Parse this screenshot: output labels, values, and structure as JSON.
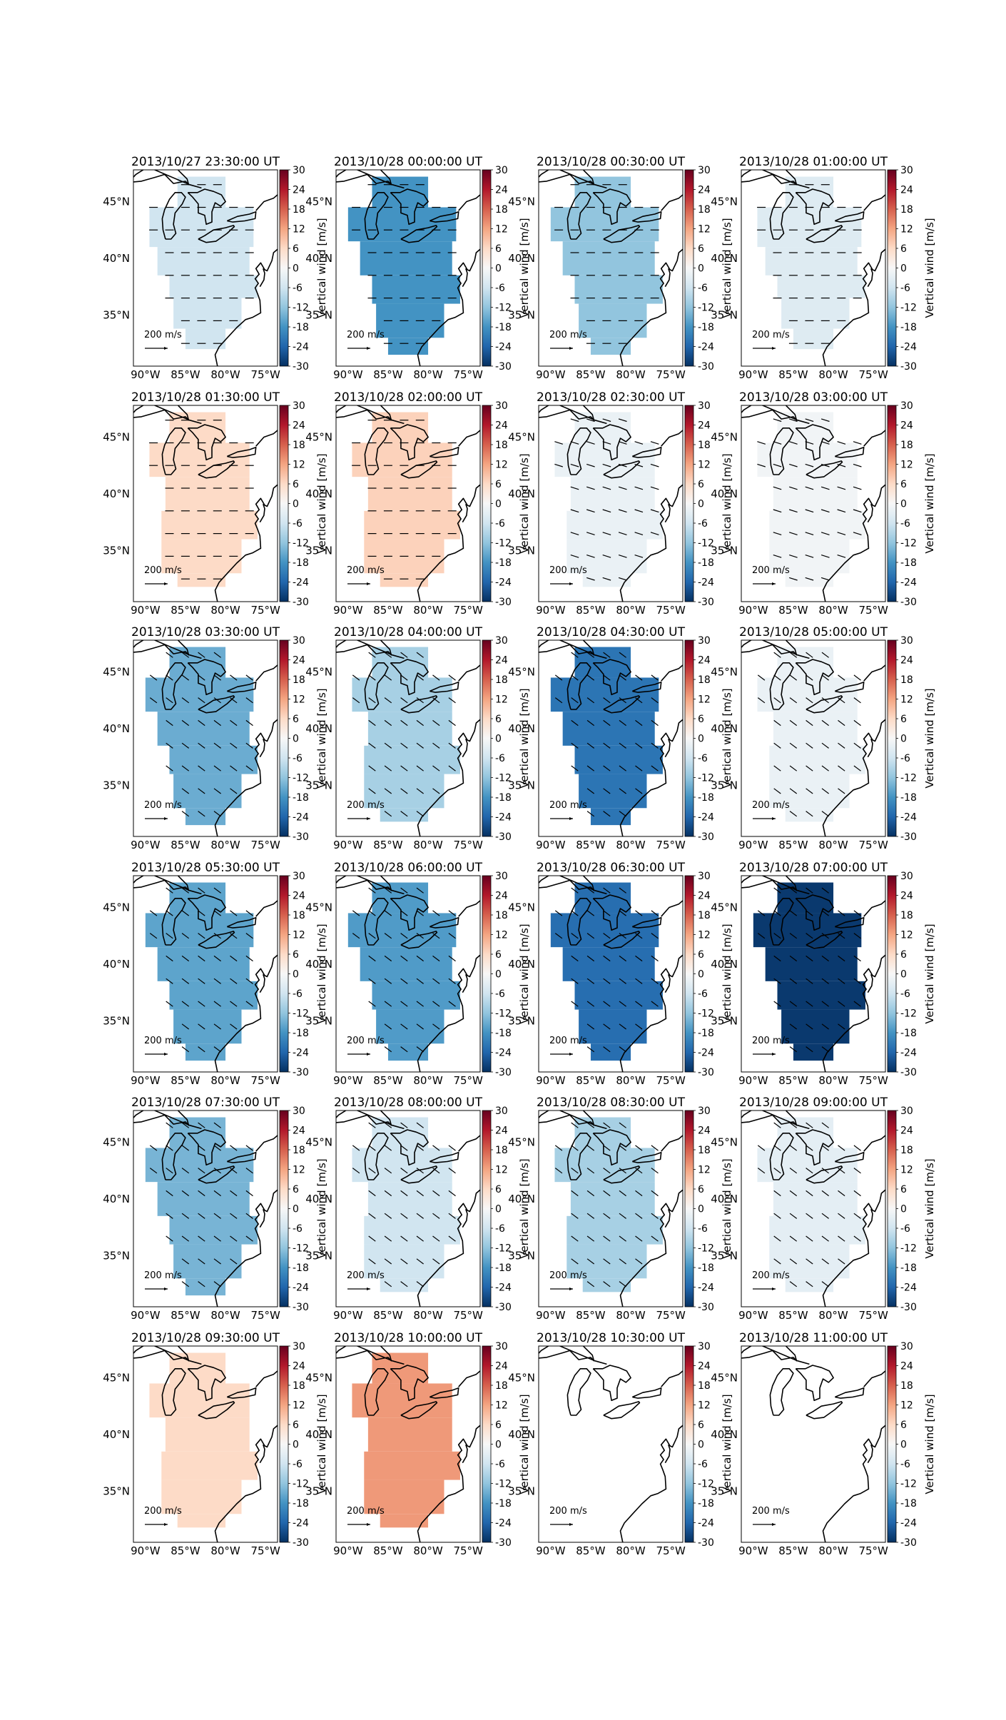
{
  "figure": {
    "longitude_ticks": [
      "90°W",
      "85°W",
      "80°W",
      "75°W"
    ],
    "latitude_ticks": [
      "45°N",
      "40°N",
      "35°N"
    ],
    "colorbar_ticks": [
      30,
      24,
      18,
      12,
      6,
      0,
      -6,
      -12,
      -18,
      -24,
      -30
    ],
    "colorbar_label": "Vertical wind [m/s]",
    "colorbar_range": [
      -30,
      30
    ],
    "colormap": "RdBu_r",
    "colormap_stops": [
      "#053061",
      "#2166ac",
      "#4393c3",
      "#92c5de",
      "#d1e5f0",
      "#f7f7f7",
      "#fddbc7",
      "#f4a582",
      "#d6604d",
      "#b2182b",
      "#67001f"
    ],
    "quiver_key_value": "200",
    "quiver_key_units": "m/s"
  },
  "chart_data": [
    {
      "type": "heatmap",
      "title": "2013/10/27 23:30:00 UT",
      "region": "great-lakes-small",
      "vertical_wind": -6,
      "arrow_direction": "east"
    },
    {
      "type": "heatmap",
      "title": "2013/10/28 00:00:00 UT",
      "region": "large",
      "vertical_wind": -18,
      "arrow_direction": "east"
    },
    {
      "type": "heatmap",
      "title": "2013/10/28 00:30:00 UT",
      "region": "large",
      "vertical_wind": -12,
      "arrow_direction": "east"
    },
    {
      "type": "heatmap",
      "title": "2013/10/28 01:00:00 UT",
      "region": "great-lakes-small",
      "vertical_wind": -4,
      "arrow_direction": "east"
    },
    {
      "type": "heatmap",
      "title": "2013/10/28 01:30:00 UT",
      "region": "medium",
      "vertical_wind": 6,
      "arrow_direction": "east"
    },
    {
      "type": "heatmap",
      "title": "2013/10/28 02:00:00 UT",
      "region": "medium",
      "vertical_wind": 7,
      "arrow_direction": "east"
    },
    {
      "type": "heatmap",
      "title": "2013/10/28 02:30:00 UT",
      "region": "medium",
      "vertical_wind": -2,
      "arrow_direction": "east-southeast"
    },
    {
      "type": "heatmap",
      "title": "2013/10/28 03:00:00 UT",
      "region": "medium",
      "vertical_wind": -1,
      "arrow_direction": "east-southeast"
    },
    {
      "type": "heatmap",
      "title": "2013/10/28 03:30:00 UT",
      "region": "large",
      "vertical_wind": -15,
      "arrow_direction": "southeast"
    },
    {
      "type": "heatmap",
      "title": "2013/10/28 04:00:00 UT",
      "region": "medium",
      "vertical_wind": -10,
      "arrow_direction": "southeast"
    },
    {
      "type": "heatmap",
      "title": "2013/10/28 04:30:00 UT",
      "region": "large",
      "vertical_wind": -22,
      "arrow_direction": "southeast"
    },
    {
      "type": "heatmap",
      "title": "2013/10/28 05:00:00 UT",
      "region": "medium",
      "vertical_wind": -2,
      "arrow_direction": "southeast"
    },
    {
      "type": "heatmap",
      "title": "2013/10/28 05:30:00 UT",
      "region": "large",
      "vertical_wind": -16,
      "arrow_direction": "southeast"
    },
    {
      "type": "heatmap",
      "title": "2013/10/28 06:00:00 UT",
      "region": "large",
      "vertical_wind": -17,
      "arrow_direction": "southeast"
    },
    {
      "type": "heatmap",
      "title": "2013/10/28 06:30:00 UT",
      "region": "large",
      "vertical_wind": -23,
      "arrow_direction": "southeast"
    },
    {
      "type": "heatmap",
      "title": "2013/10/28 07:00:00 UT",
      "region": "large",
      "vertical_wind": -29,
      "arrow_direction": "southeast"
    },
    {
      "type": "heatmap",
      "title": "2013/10/28 07:30:00 UT",
      "region": "large",
      "vertical_wind": -14,
      "arrow_direction": "southeast"
    },
    {
      "type": "heatmap",
      "title": "2013/10/28 08:00:00 UT",
      "region": "medium",
      "vertical_wind": -6,
      "arrow_direction": "southeast"
    },
    {
      "type": "heatmap",
      "title": "2013/10/28 08:30:00 UT",
      "region": "medium",
      "vertical_wind": -10,
      "arrow_direction": "southeast"
    },
    {
      "type": "heatmap",
      "title": "2013/10/28 09:00:00 UT",
      "region": "medium",
      "vertical_wind": -3,
      "arrow_direction": "southeast"
    },
    {
      "type": "heatmap",
      "title": "2013/10/28 09:30:00 UT",
      "region": "medium",
      "vertical_wind": 6,
      "arrow_direction": "none"
    },
    {
      "type": "heatmap",
      "title": "2013/10/28 10:00:00 UT",
      "region": "medium",
      "vertical_wind": 13,
      "arrow_direction": "none"
    },
    {
      "type": "heatmap",
      "title": "2013/10/28 10:30:00 UT",
      "region": "none",
      "vertical_wind": null,
      "arrow_direction": "none"
    },
    {
      "type": "heatmap",
      "title": "2013/10/28 11:00:00 UT",
      "region": "none",
      "vertical_wind": null,
      "arrow_direction": "none"
    }
  ]
}
